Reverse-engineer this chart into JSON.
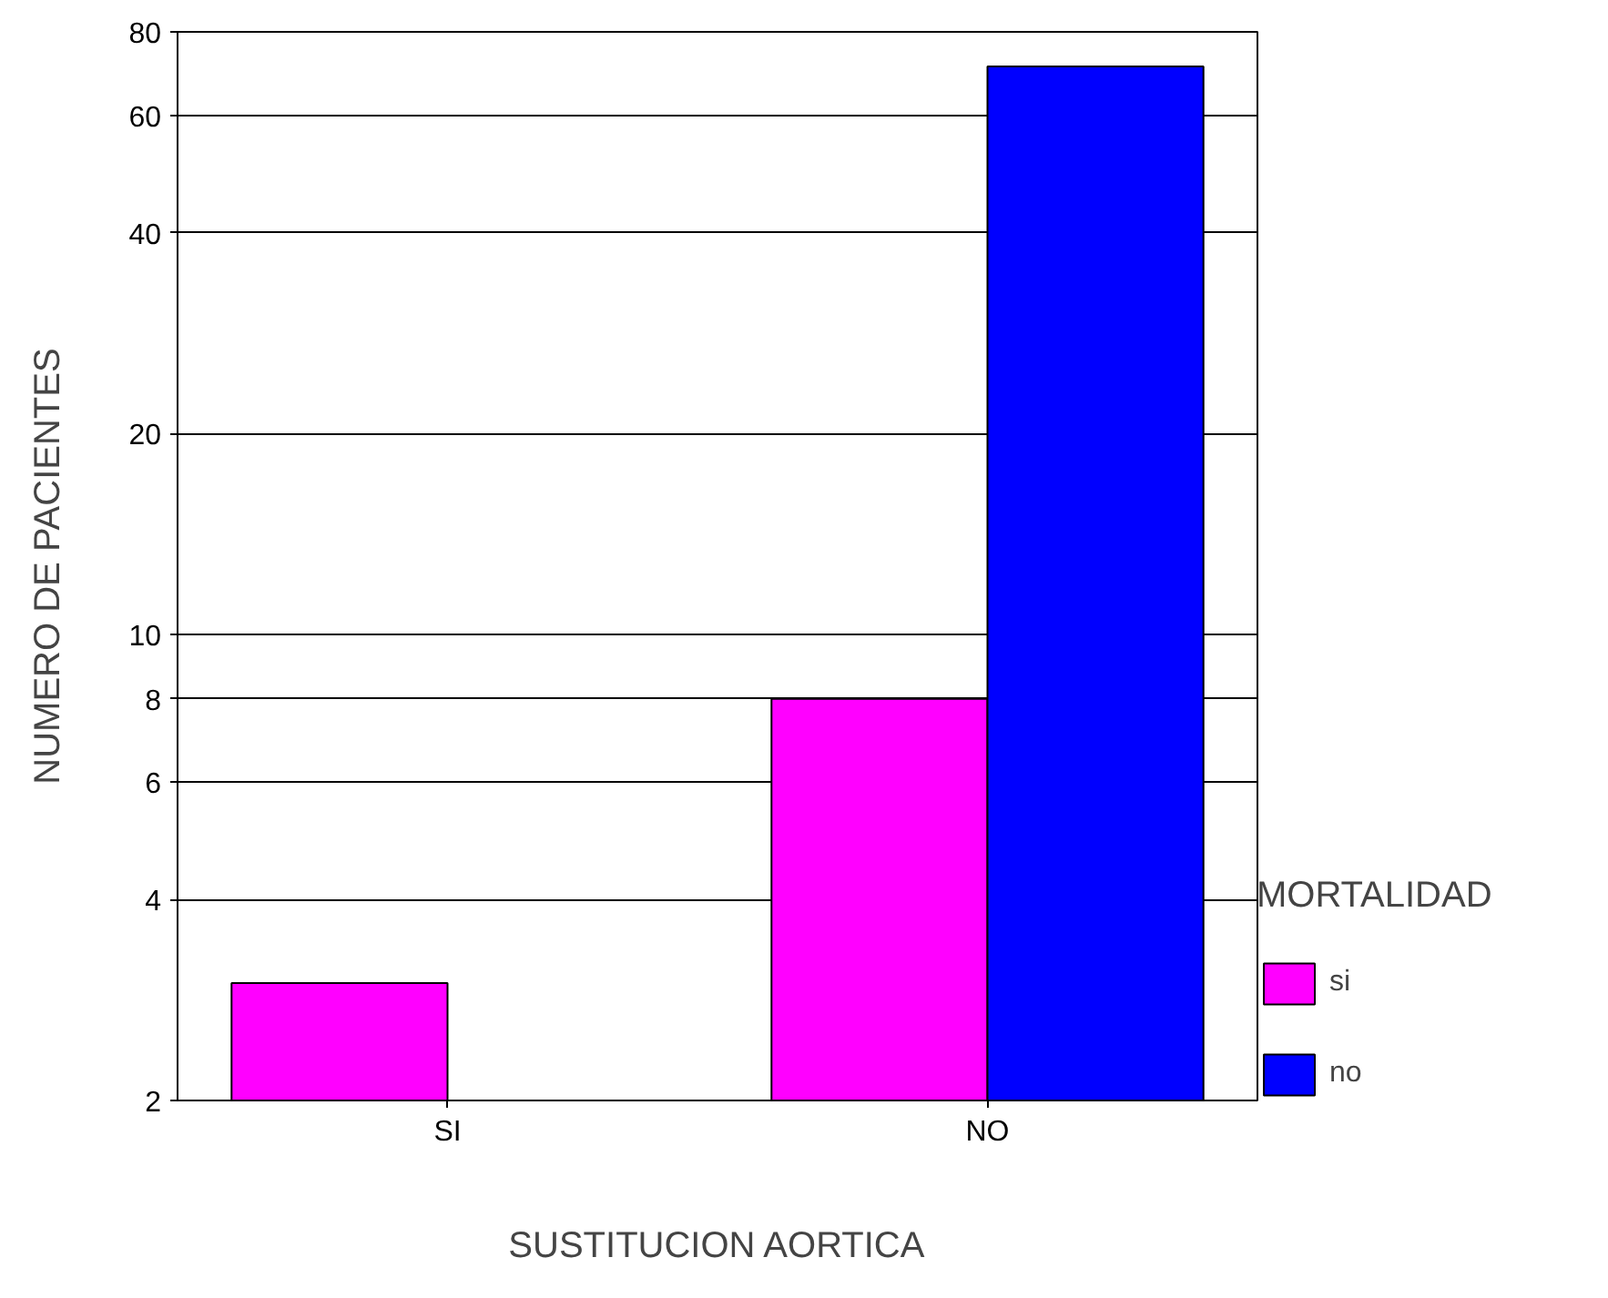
{
  "chart_data": {
    "type": "bar",
    "xlabel": "SUSTITUCION AORTICA",
    "ylabel": "NUMERO DE PACIENTES",
    "legend_title": "MORTALIDAD",
    "categories": [
      "SI",
      "NO"
    ],
    "series": [
      {
        "name": "si",
        "color": "#ff00ff",
        "values": [
          3,
          8
        ]
      },
      {
        "name": "no",
        "color": "#0000ff",
        "values": [
          null,
          71
        ]
      }
    ],
    "log": "y",
    "ylim": [
      2,
      80
    ],
    "yticks": [
      2,
      4,
      6,
      8,
      10,
      20,
      40,
      60,
      80
    ],
    "grid": "y",
    "legend": "right"
  }
}
